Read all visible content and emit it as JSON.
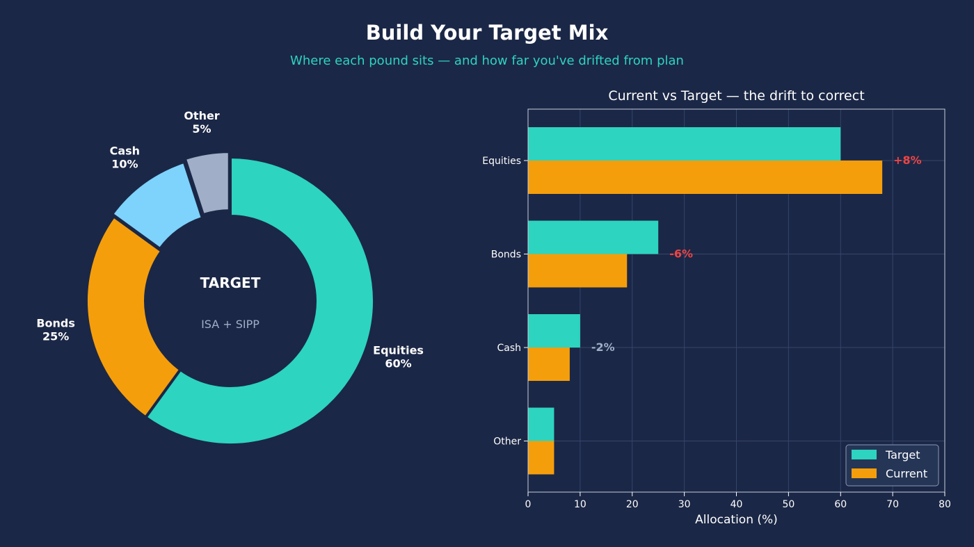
{
  "header": {
    "title": "Build Your Target Mix",
    "subtitle": "Where each pound sits — and how far you've drifted from plan"
  },
  "colors": {
    "background": "#1b2746",
    "target": "#2dd4bf",
    "current": "#f59e0b",
    "cash": "#7dd3fc",
    "other": "#a0aec8",
    "drift_negative_strong": "#ef4444",
    "drift_neutral": "#a0aec8",
    "grid": "#34456b"
  },
  "chart_data": [
    {
      "type": "pie",
      "variant": "donut",
      "center_title": "TARGET",
      "center_subtitle": "ISA + SIPP",
      "slices": [
        {
          "label": "Equities",
          "pct_label": "60%",
          "value": 60,
          "color": "#2dd4bf"
        },
        {
          "label": "Bonds",
          "pct_label": "25%",
          "value": 25,
          "color": "#f59e0b"
        },
        {
          "label": "Cash",
          "pct_label": "10%",
          "value": 10,
          "color": "#7dd3fc"
        },
        {
          "label": "Other",
          "pct_label": "5%",
          "value": 5,
          "color": "#a0aec8"
        }
      ]
    },
    {
      "type": "bar",
      "orientation": "horizontal",
      "title": "Current vs Target — the drift to correct",
      "xlabel": "Allocation (%)",
      "xlim": [
        0,
        80
      ],
      "xticks": [
        "0",
        "10",
        "20",
        "30",
        "40",
        "50",
        "60",
        "70",
        "80"
      ],
      "grid": true,
      "legend_position": "bottom-right",
      "categories": [
        "Equities",
        "Bonds",
        "Cash",
        "Other"
      ],
      "series": [
        {
          "name": "Target",
          "values": [
            60,
            25,
            10,
            5
          ],
          "color": "#2dd4bf"
        },
        {
          "name": "Current",
          "values": [
            68,
            19,
            8,
            5
          ],
          "color": "#f59e0b"
        }
      ],
      "drift_labels": [
        {
          "category": "Equities",
          "text": "+8%",
          "color": "#ef4444"
        },
        {
          "category": "Bonds",
          "text": "-6%",
          "color": "#ef4444"
        },
        {
          "category": "Cash",
          "text": "-2%",
          "color": "#a0aec8"
        },
        {
          "category": "Other",
          "text": "",
          "color": "#a0aec8"
        }
      ]
    }
  ]
}
